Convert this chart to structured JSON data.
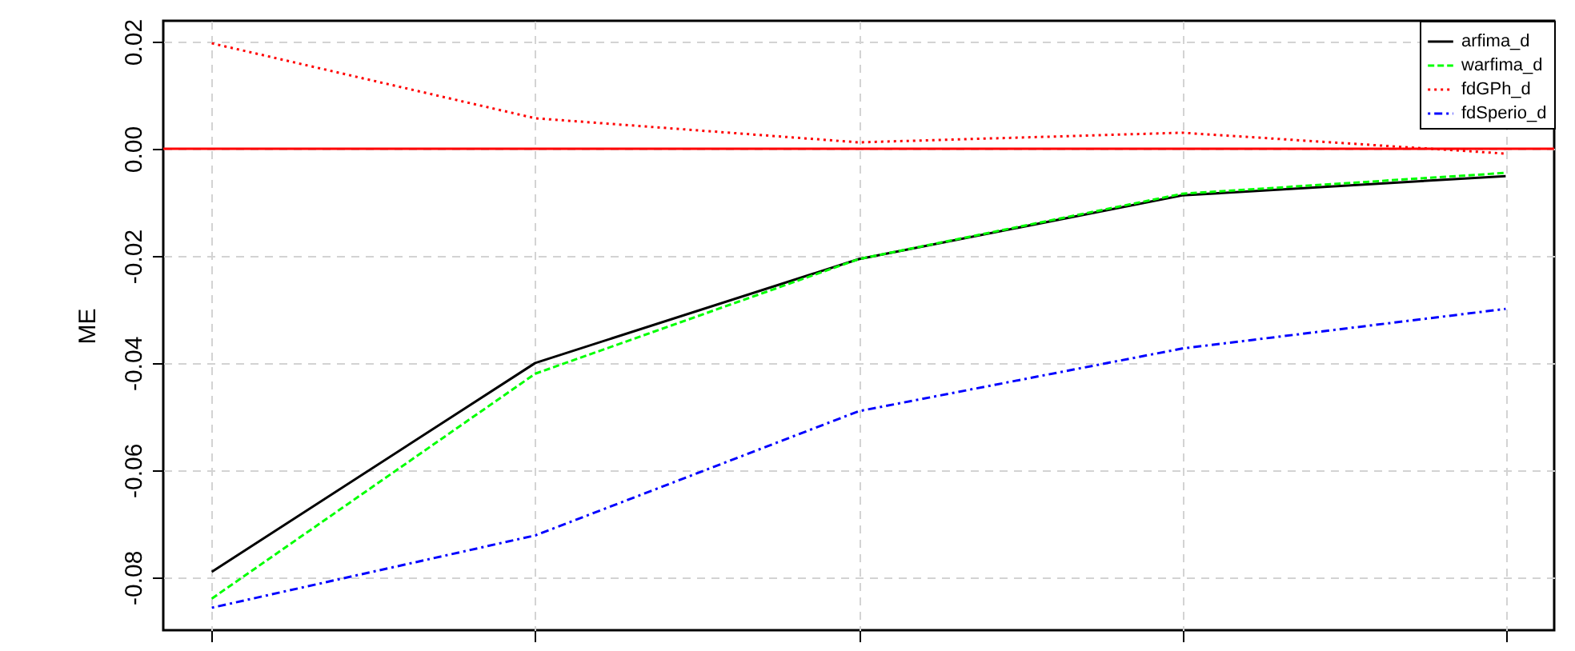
{
  "chart_data": {
    "type": "line",
    "ylabel": "ME",
    "categories": [
      null,
      null,
      null,
      null,
      null
    ],
    "series": [
      {
        "name": "arfima_d",
        "color": "#000000",
        "line_style": "solid",
        "values": [
          -0.079,
          -0.04,
          -0.0206,
          -0.0087,
          -0.0051
        ]
      },
      {
        "name": "warfima_d",
        "color": "#00ff00",
        "line_style": "dashed",
        "values": [
          -0.084,
          -0.042,
          -0.0206,
          -0.0084,
          -0.0045
        ]
      },
      {
        "name": "fdGPh_d",
        "color": "#ff0000",
        "line_style": "dotted",
        "values": [
          0.0197,
          0.0057,
          0.0012,
          0.003,
          -0.0009
        ]
      },
      {
        "name": "fdSperio_d",
        "color": "#0000ff",
        "line_style": "dashdot",
        "values": [
          -0.0857,
          -0.0722,
          -0.049,
          -0.0373,
          -0.0299
        ]
      }
    ],
    "ylim": [
      -0.0899,
      0.0239
    ],
    "yticks": [
      {
        "value": -0.08,
        "label": "-0.08"
      },
      {
        "value": -0.06,
        "label": "-0.06"
      },
      {
        "value": -0.04,
        "label": "-0.04"
      },
      {
        "value": -0.02,
        "label": "-0.02"
      },
      {
        "value": 0,
        "label": "0.00"
      },
      {
        "value": 0.02,
        "label": "0.02"
      }
    ],
    "tick_labels": "y",
    "ref_lines": [
      {
        "axis": "y",
        "value": 0,
        "color": "#ff0000",
        "line_style": "solid"
      }
    ],
    "grid": true,
    "legend": "top right",
    "marker": "none"
  }
}
